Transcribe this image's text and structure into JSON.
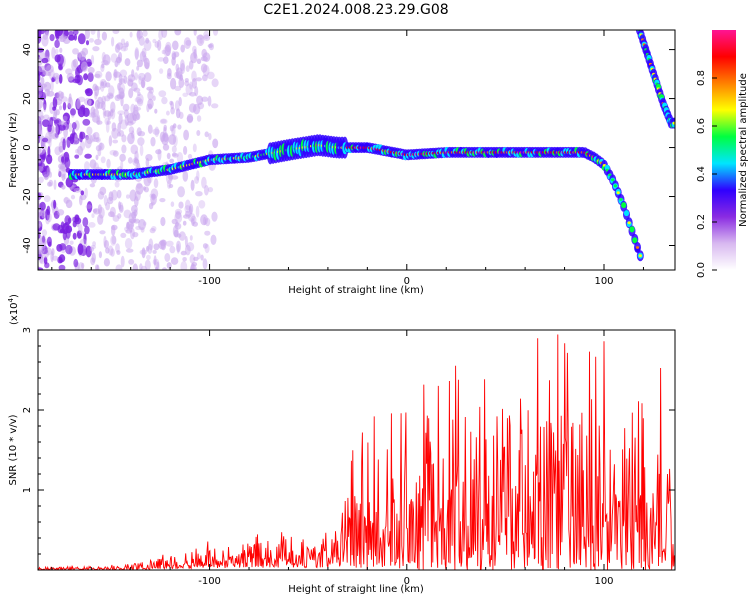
{
  "page": {
    "title": "C2E1.2024.008.23.29.G08"
  },
  "chart_data": [
    {
      "type": "heatmap",
      "xlabel": "Height of straight line (km)",
      "ylabel": "Frequency (Hz)",
      "xlim": [
        -187,
        136
      ],
      "ylim": [
        -50,
        48
      ],
      "x_ticks": [
        -100,
        0,
        100
      ],
      "y_ticks": [
        -40,
        -20,
        0,
        20,
        40
      ],
      "colorbar": {
        "label": "Normalized spectral amplitude",
        "range": [
          0,
          1
        ],
        "ticks": [
          "0.0",
          "0.2",
          "0.4",
          "0.6",
          "0.8"
        ],
        "tick_values": [
          0.0,
          0.2,
          0.4,
          0.6,
          0.8
        ],
        "stops": [
          "#ffffff",
          "#d8b8f0",
          "#8a2be2",
          "#2f00ff",
          "#00e5ff",
          "#00ff40",
          "#ffff00",
          "#ff8000",
          "#ff0000",
          "#ff1493"
        ]
      },
      "ridge": {
        "x": [
          -185,
          -160,
          -140,
          -120,
          -100,
          -80,
          -60,
          -45,
          -35,
          -20,
          0,
          20,
          40,
          60,
          80,
          90,
          95,
          100,
          105,
          110,
          115,
          120
        ],
        "y": [
          -11,
          -11,
          -11,
          -9,
          -5,
          -4,
          -1,
          1,
          0,
          0,
          -3,
          -2,
          -2,
          -2,
          -2,
          -2,
          -4,
          -7,
          -14,
          -24,
          -36,
          -48
        ]
      },
      "upper_ridge": {
        "x": [
          118,
          122,
          126,
          130,
          134
        ],
        "y": [
          48,
          38,
          28,
          18,
          10
        ]
      },
      "noise_region": {
        "x": [
          -187,
          -140
        ],
        "y": [
          -50,
          48
        ]
      }
    },
    {
      "type": "line",
      "xlabel": "Height of straight line (km)",
      "ylabel": "SNR (10 * v/v)",
      "y_scale_label": "(x10",
      "y_scale_exponent": "4",
      "y_scale_suffix": ")",
      "xlim": [
        -187,
        136
      ],
      "ylim": [
        0,
        3
      ],
      "x_ticks": [
        -100,
        0,
        100
      ],
      "y_ticks": [
        1,
        2,
        3
      ],
      "color": "#ff0000",
      "envelope": {
        "x": [
          -187,
          -160,
          -140,
          -120,
          -100,
          -80,
          -60,
          -40,
          -30,
          -25,
          -20,
          -10,
          0,
          20,
          40,
          60,
          80,
          100,
          120,
          136
        ],
        "y": [
          0.02,
          0.03,
          0.05,
          0.12,
          0.22,
          0.28,
          0.3,
          0.3,
          0.55,
          1.05,
          1.15,
          1.1,
          1.3,
          1.6,
          1.75,
          1.65,
          1.6,
          1.5,
          1.4,
          1.45
        ]
      }
    }
  ]
}
